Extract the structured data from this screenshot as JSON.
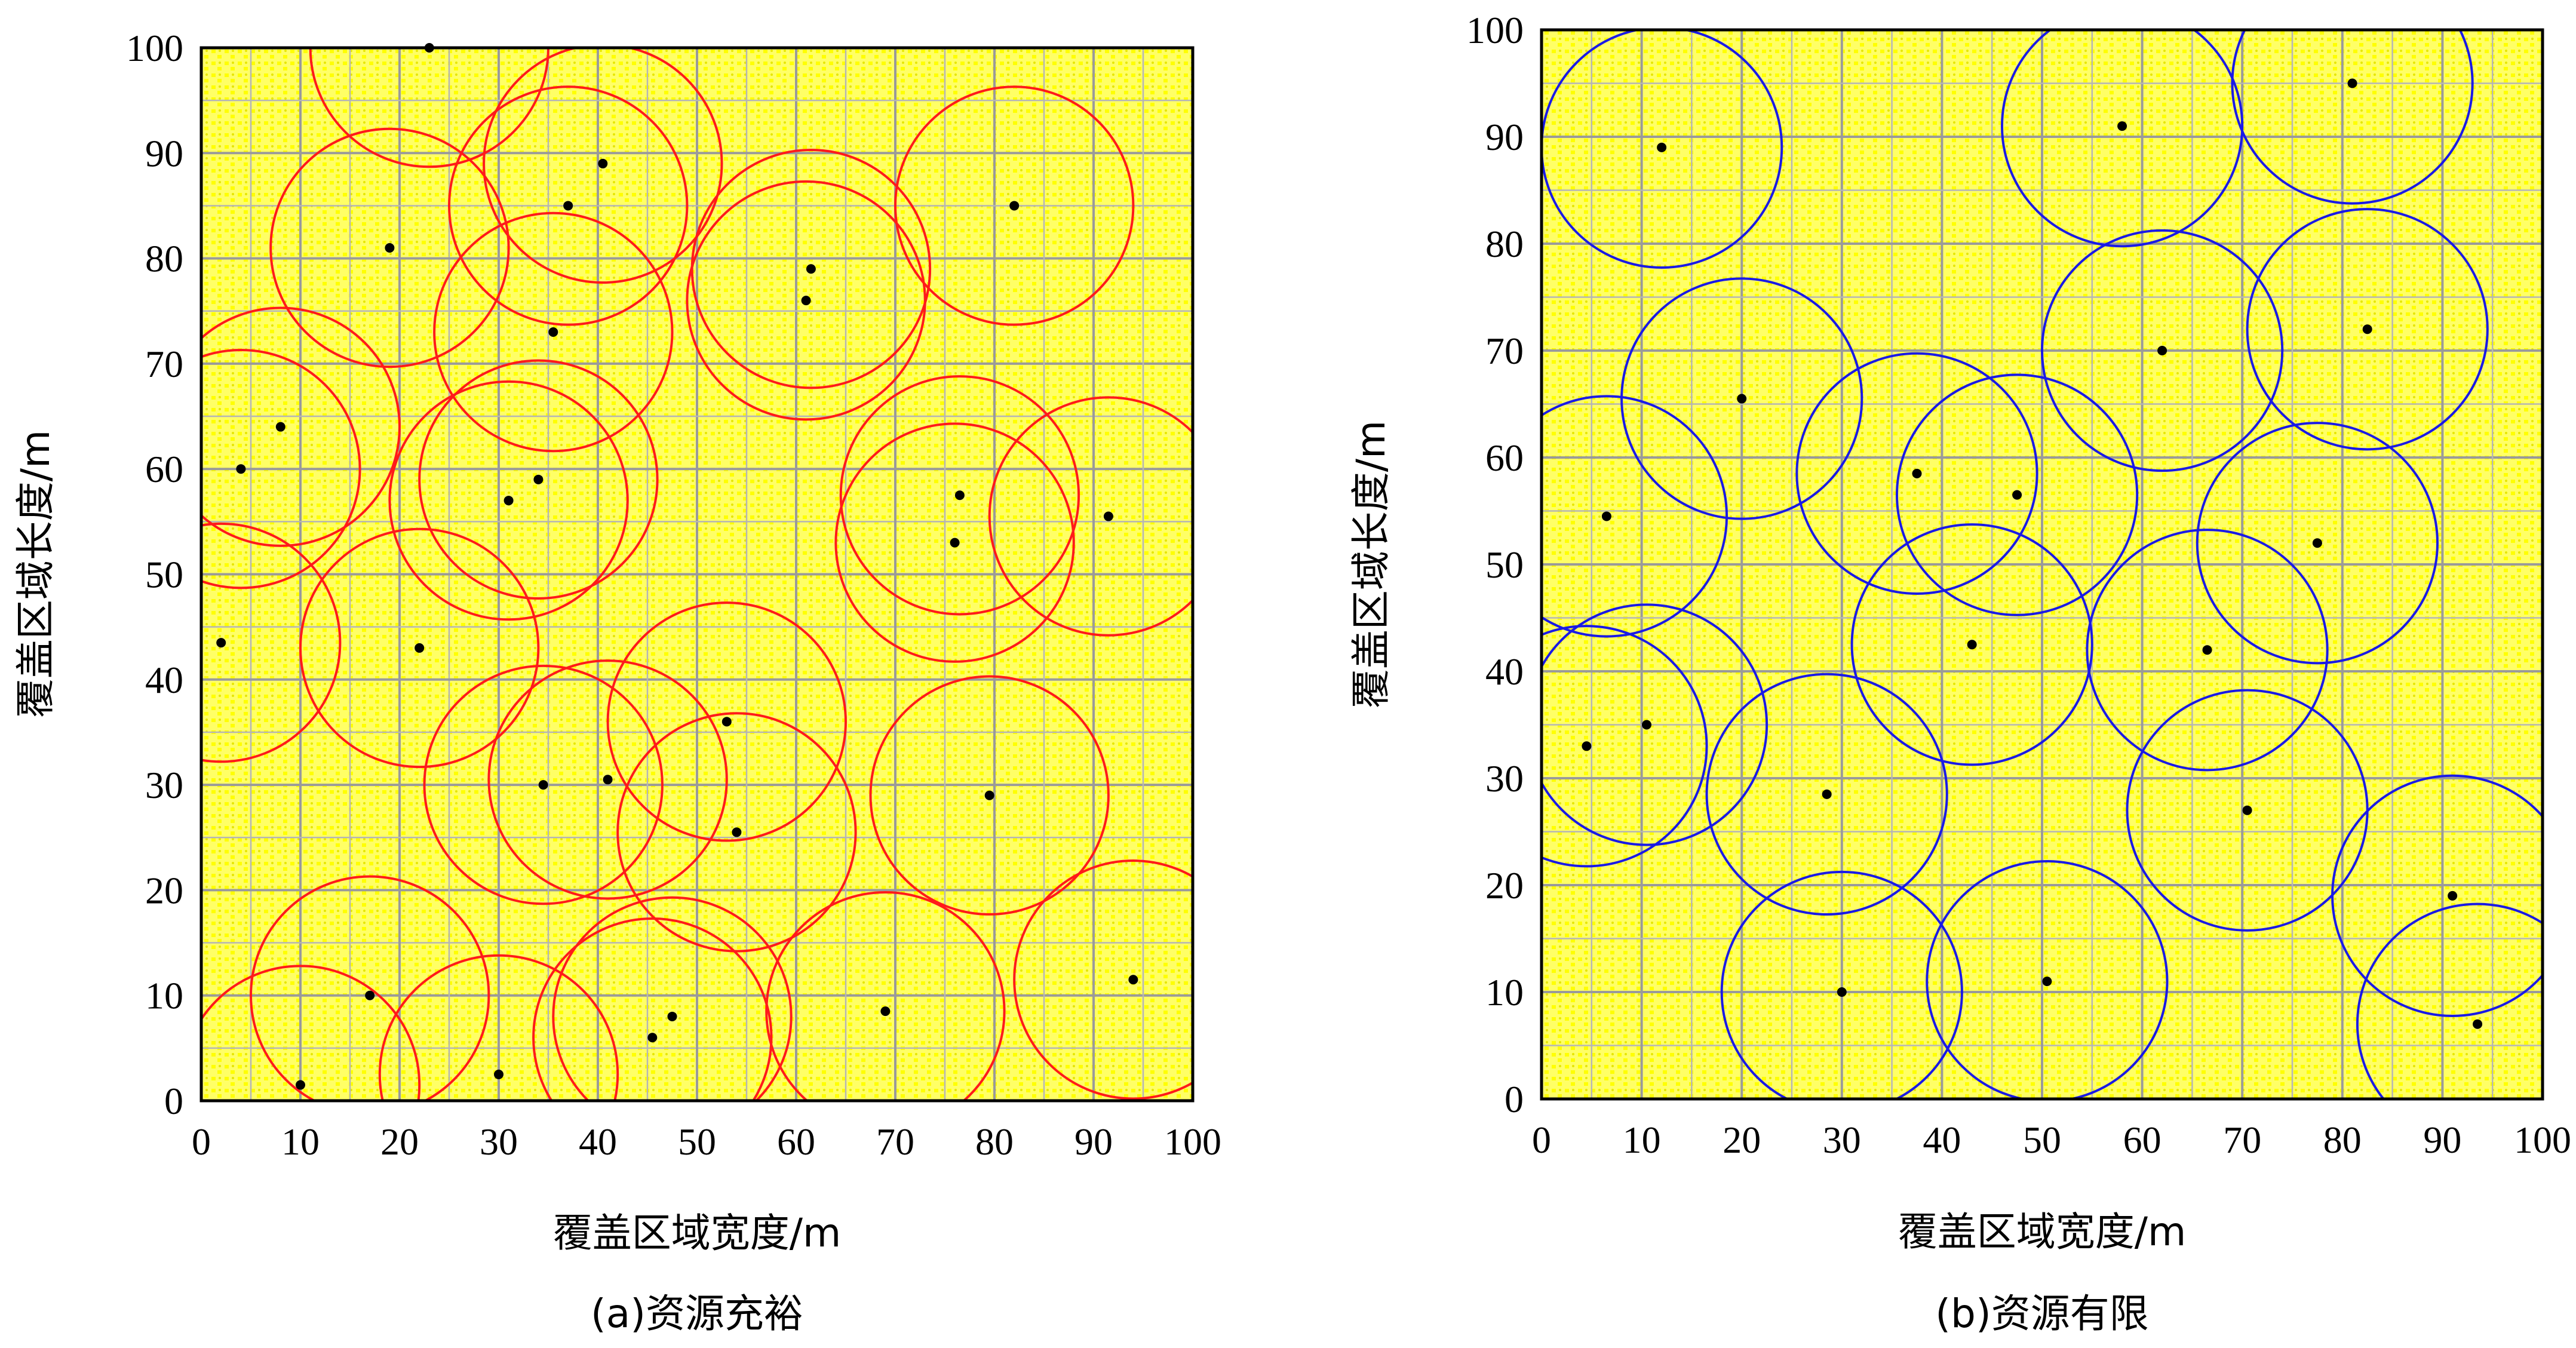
{
  "chart_data": [
    {
      "type": "scatter",
      "caption": "(a)资源充裕",
      "xlabel": "覆盖区域宽度/m",
      "ylabel": "覆盖区域长度/m",
      "xlim": [
        0,
        100
      ],
      "ylim": [
        0,
        100
      ],
      "xticks": [
        "0",
        "10",
        "20",
        "30",
        "40",
        "50",
        "60",
        "70",
        "80",
        "90",
        "100"
      ],
      "yticks": [
        "0",
        "10",
        "20",
        "30",
        "40",
        "50",
        "60",
        "70",
        "80",
        "90",
        "100"
      ],
      "grid": true,
      "background_color": "#FFFF66",
      "circle_color": "#FF1A1A",
      "point_color": "#000000",
      "coverage_radius": 12,
      "points": [
        [
          23,
          100
        ],
        [
          40.5,
          89
        ],
        [
          37,
          85
        ],
        [
          19,
          81
        ],
        [
          82,
          85
        ],
        [
          61.5,
          79
        ],
        [
          61,
          76
        ],
        [
          35.5,
          73
        ],
        [
          8,
          64
        ],
        [
          4,
          60
        ],
        [
          34,
          59
        ],
        [
          31,
          57
        ],
        [
          76.5,
          57.5
        ],
        [
          91.5,
          55.5
        ],
        [
          76,
          53
        ],
        [
          2,
          43.5
        ],
        [
          22,
          43
        ],
        [
          53,
          36
        ],
        [
          79.5,
          29
        ],
        [
          41,
          30.5
        ],
        [
          34.5,
          30
        ],
        [
          54,
          25.5
        ],
        [
          94,
          11.5
        ],
        [
          17,
          10
        ],
        [
          69,
          8.5
        ],
        [
          47.5,
          8
        ],
        [
          45.5,
          6
        ],
        [
          30,
          2.5
        ],
        [
          10,
          1.5
        ]
      ]
    },
    {
      "type": "scatter",
      "caption": "(b)资源有限",
      "xlabel": "覆盖区域宽度/m",
      "ylabel": "覆盖区域长度/m",
      "xlim": [
        0,
        100
      ],
      "ylim": [
        0,
        100
      ],
      "xticks": [
        "0",
        "10",
        "20",
        "30",
        "40",
        "50",
        "60",
        "70",
        "80",
        "90",
        "100"
      ],
      "yticks": [
        "0",
        "10",
        "20",
        "30",
        "40",
        "50",
        "60",
        "70",
        "80",
        "90",
        "100"
      ],
      "grid": true,
      "background_color": "#FFFF66",
      "circle_color": "#1A1AE6",
      "point_color": "#000000",
      "coverage_radius": 12,
      "points": [
        [
          12,
          89
        ],
        [
          58,
          91
        ],
        [
          81,
          95
        ],
        [
          62,
          70
        ],
        [
          82.5,
          72
        ],
        [
          20,
          65.5
        ],
        [
          6.5,
          54.5
        ],
        [
          37.5,
          58.5
        ],
        [
          47.5,
          56.5
        ],
        [
          77.5,
          52
        ],
        [
          43,
          42.5
        ],
        [
          66.5,
          42
        ],
        [
          4.5,
          33
        ],
        [
          10.5,
          35
        ],
        [
          28.5,
          28.5
        ],
        [
          70.5,
          27
        ],
        [
          91,
          19
        ],
        [
          30,
          10
        ],
        [
          50.5,
          11
        ],
        [
          93.5,
          7
        ]
      ]
    }
  ]
}
